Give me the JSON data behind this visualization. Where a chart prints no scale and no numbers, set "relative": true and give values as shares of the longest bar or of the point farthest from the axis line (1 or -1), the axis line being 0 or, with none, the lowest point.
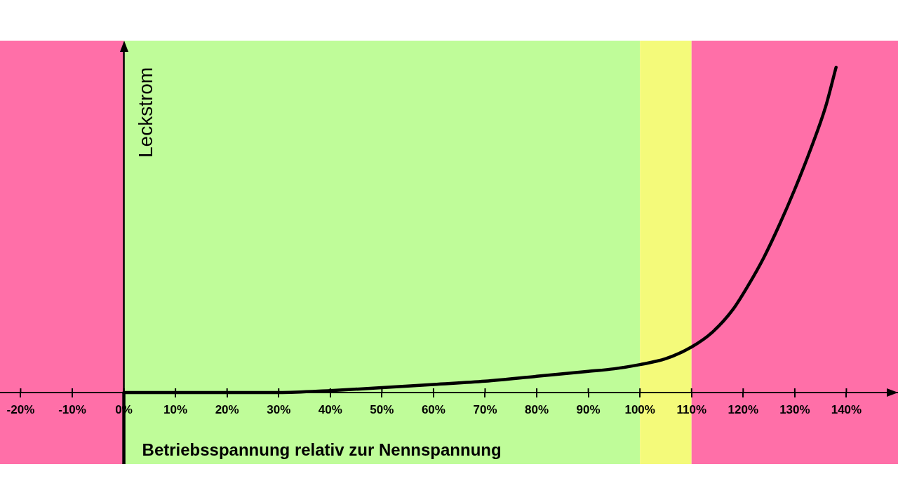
{
  "chart_data": {
    "type": "line",
    "xlabel": "Betriebsspannung relativ zur Nennspannung",
    "ylabel": "Leckstrom",
    "relative": true,
    "x": [
      0,
      10,
      20,
      30,
      40,
      50,
      60,
      70,
      80,
      90,
      95,
      100,
      105,
      110,
      114,
      118,
      121,
      124,
      127,
      130,
      133,
      136,
      138
    ],
    "series": [
      {
        "color": "#000000",
        "values": [
          0,
          0,
          0,
          0,
          0.006,
          0.015,
          0.025,
          0.035,
          0.05,
          0.065,
          0.073,
          0.086,
          0.104,
          0.14,
          0.185,
          0.255,
          0.33,
          0.415,
          0.515,
          0.625,
          0.745,
          0.88,
          1
        ]
      }
    ],
    "xlim": [
      -24,
      150
    ],
    "xticks": [
      {
        "value": -20,
        "label": "-20%"
      },
      {
        "value": -10,
        "label": "-10%"
      },
      {
        "value": 0,
        "label": "0%"
      },
      {
        "value": 10,
        "label": "10%"
      },
      {
        "value": 20,
        "label": "20%"
      },
      {
        "value": 30,
        "label": "30%"
      },
      {
        "value": 40,
        "label": "40%"
      },
      {
        "value": 50,
        "label": "50%"
      },
      {
        "value": 60,
        "label": "60%"
      },
      {
        "value": 70,
        "label": "70%"
      },
      {
        "value": 80,
        "label": "80%"
      },
      {
        "value": 90,
        "label": "90%"
      },
      {
        "value": 100,
        "label": "100%"
      },
      {
        "value": 110,
        "label": "110%"
      },
      {
        "value": 120,
        "label": "120%"
      },
      {
        "value": 130,
        "label": "130%"
      },
      {
        "value": 140,
        "label": "140%"
      }
    ],
    "bands": [
      {
        "axis": "x",
        "from": -24,
        "to": 0,
        "color": "#ff6fa8"
      },
      {
        "axis": "x",
        "from": 0,
        "to": 100,
        "color": "#bffc99"
      },
      {
        "axis": "x",
        "from": 100,
        "to": 110,
        "color": "#f4fa7a"
      },
      {
        "axis": "x",
        "from": 110,
        "to": 150,
        "color": "#ff6fa8"
      }
    ]
  }
}
